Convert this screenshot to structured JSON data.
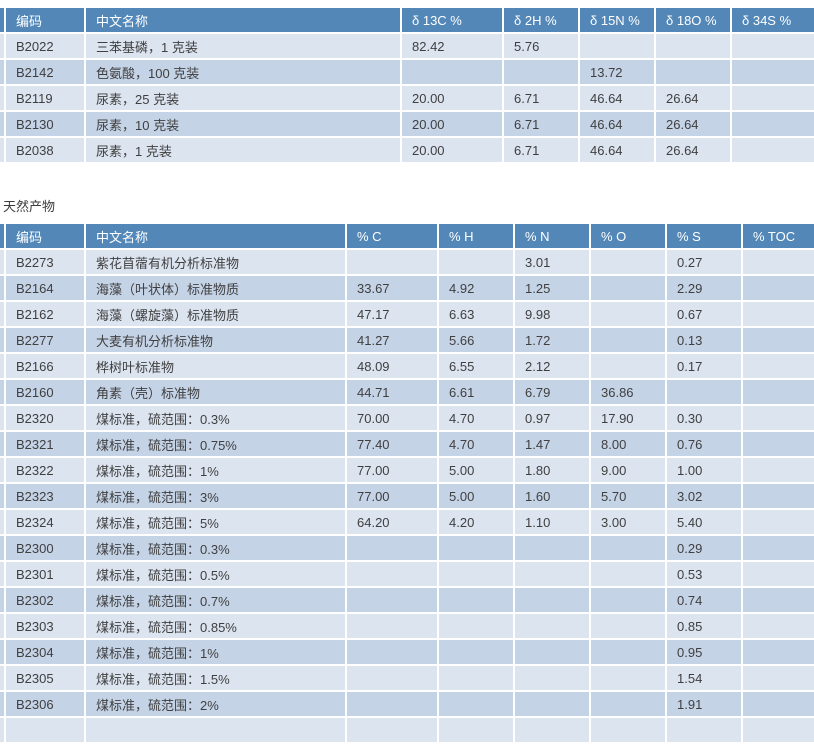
{
  "colors": {
    "header_bg": "#5287b8",
    "row_light": "#dce4f0",
    "row_dark": "#c5d3e7",
    "body_text": "#3f3f3f",
    "header_text": "#ffffff"
  },
  "headings": {
    "natural_products": "天然产物"
  },
  "tables": {
    "isotope": {
      "columns": [
        "",
        "编码",
        "中文名称",
        "δ 13C %",
        "δ 2H %",
        "δ 15N %",
        "δ 18O %",
        "δ 34S %"
      ],
      "rows": [
        [
          "",
          "B2022",
          "三苯基磷，1 克装",
          "82.42",
          "5.76",
          "",
          "",
          ""
        ],
        [
          "",
          "B2142",
          "色氨酸，100 克装",
          "",
          "",
          "13.72",
          "",
          ""
        ],
        [
          "",
          "B2119",
          "尿素，25 克装",
          "20.00",
          "6.71",
          "46.64",
          "26.64",
          ""
        ],
        [
          "",
          "B2130",
          "尿素，10 克装",
          "20.00",
          "6.71",
          "46.64",
          "26.64",
          ""
        ],
        [
          "",
          "B2038",
          "尿素，1 克装",
          "20.00",
          "6.71",
          "46.64",
          "26.64",
          ""
        ]
      ]
    },
    "natural": {
      "columns": [
        "",
        "编码",
        "中文名称",
        "% C",
        "% H",
        "% N",
        "% O",
        "% S",
        "% TOC"
      ],
      "rows": [
        [
          "",
          "B2273",
          "紫花苜蓿有机分析标准物",
          "",
          "",
          "3.01",
          "",
          "0.27",
          ""
        ],
        [
          "",
          "B2164",
          "海藻（叶状体）标准物质",
          "33.67",
          "4.92",
          "1.25",
          "",
          "2.29",
          ""
        ],
        [
          "",
          "B2162",
          "海藻（螺旋藻）标准物质",
          "47.17",
          "6.63",
          "9.98",
          "",
          "0.67",
          ""
        ],
        [
          "",
          "B2277",
          "大麦有机分析标准物",
          "41.27",
          "5.66",
          "1.72",
          "",
          "0.13",
          ""
        ],
        [
          "",
          "B2166",
          "桦树叶标准物",
          "48.09",
          "6.55",
          "2.12",
          "",
          "0.17",
          ""
        ],
        [
          "",
          "B2160",
          "角素（壳）标准物",
          "44.71",
          "6.61",
          "6.79",
          "36.86",
          "",
          ""
        ],
        [
          "",
          "B2320",
          "煤标准，硫范围：0.3%",
          "70.00",
          "4.70",
          "0.97",
          "17.90",
          "0.30",
          ""
        ],
        [
          "",
          "B2321",
          "煤标准，硫范围：0.75%",
          "77.40",
          "4.70",
          "1.47",
          "8.00",
          "0.76",
          ""
        ],
        [
          "",
          "B2322",
          "煤标准，硫范围：1%",
          "77.00",
          "5.00",
          "1.80",
          "9.00",
          "1.00",
          ""
        ],
        [
          "",
          "B2323",
          "煤标准，硫范围：3%",
          "77.00",
          "5.00",
          "1.60",
          "5.70",
          "3.02",
          ""
        ],
        [
          "",
          "B2324",
          "煤标准，硫范围：5%",
          "64.20",
          "4.20",
          "1.10",
          "3.00",
          "5.40",
          ""
        ],
        [
          "",
          "B2300",
          "煤标准，硫范围：0.3%",
          "",
          "",
          "",
          "",
          "0.29",
          ""
        ],
        [
          "",
          "B2301",
          "煤标准，硫范围：0.5%",
          "",
          "",
          "",
          "",
          "0.53",
          ""
        ],
        [
          "",
          "B2302",
          "煤标准，硫范围：0.7%",
          "",
          "",
          "",
          "",
          "0.74",
          ""
        ],
        [
          "",
          "B2303",
          "煤标准，硫范围：0.85%",
          "",
          "",
          "",
          "",
          "0.85",
          ""
        ],
        [
          "",
          "B2304",
          "煤标准，硫范围：1%",
          "",
          "",
          "",
          "",
          "0.95",
          ""
        ],
        [
          "",
          "B2305",
          "煤标准，硫范围：1.5%",
          "",
          "",
          "",
          "",
          "1.54",
          ""
        ],
        [
          "",
          "B2306",
          "煤标准，硫范围：2%",
          "",
          "",
          "",
          "",
          "1.91",
          ""
        ],
        [
          "",
          "",
          "",
          "",
          "",
          "",
          "",
          "",
          ""
        ]
      ]
    }
  }
}
